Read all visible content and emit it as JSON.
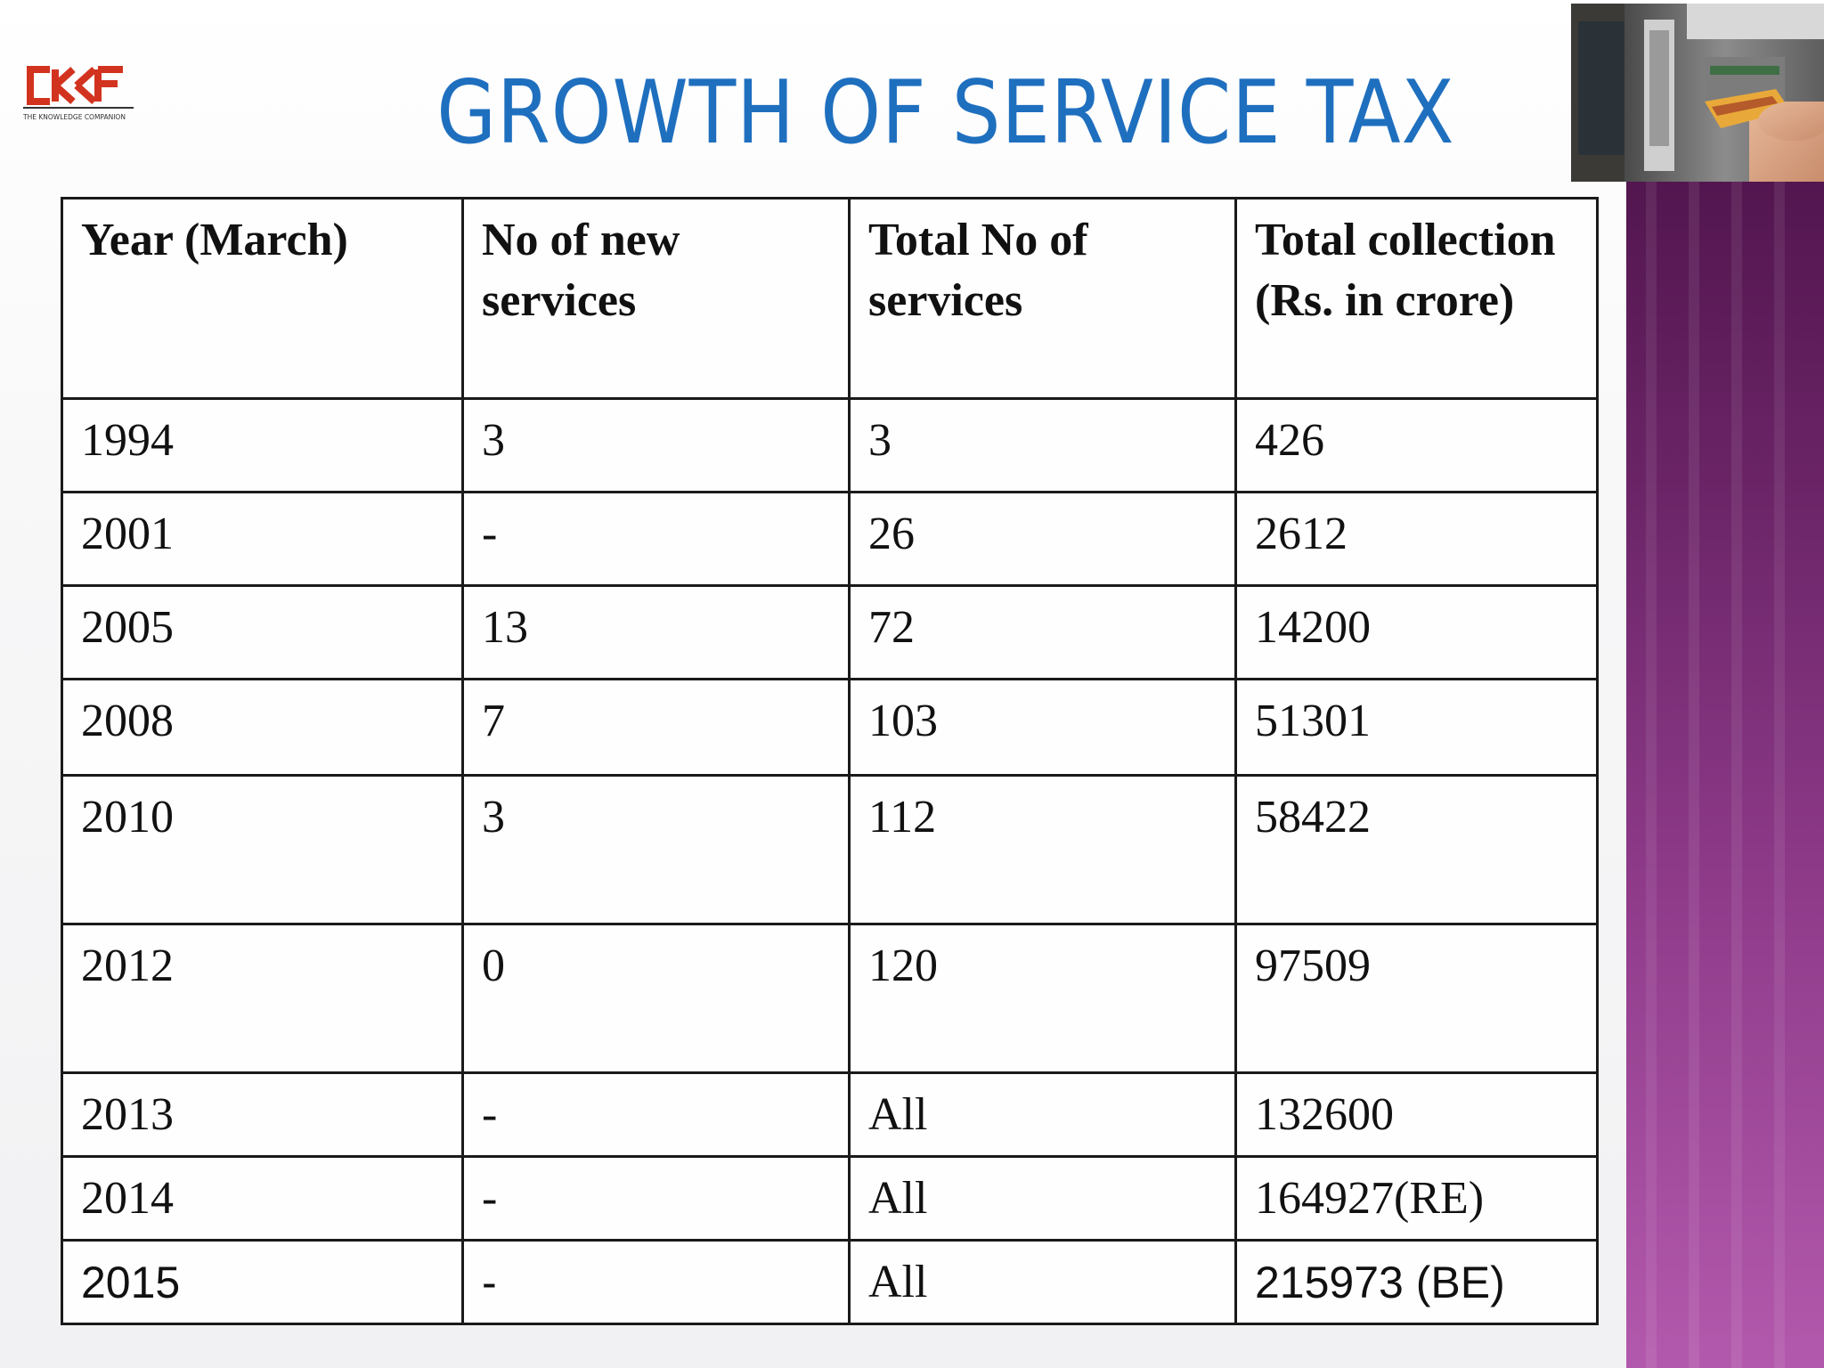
{
  "logo": {
    "text": "CKF",
    "tagline": "THE KNOWLEDGE COMPANION"
  },
  "title": "GROWTH OF SERVICE TAX",
  "photo": {
    "subject": "atm-card-image"
  },
  "colors": {
    "title": "#1f6fbf",
    "logo_red": "#d2331f",
    "panel_top": "#53164f",
    "panel_bottom": "#b359ad"
  },
  "table": {
    "headers": [
      "Year (March)",
      "No of new services",
      "Total No of services",
      "Total collection (Rs. in crore)"
    ],
    "rows": [
      [
        "1994",
        "3",
        "3",
        "426"
      ],
      [
        "2001",
        "-",
        "26",
        "2612"
      ],
      [
        "2005",
        "13",
        "72",
        "14200"
      ],
      [
        "2008",
        "7",
        "103",
        "51301"
      ],
      [
        "2010",
        "3",
        "112",
        "58422"
      ],
      [
        "2012",
        "0",
        "120",
        "97509"
      ],
      [
        "2013",
        "-",
        "All",
        "132600"
      ],
      [
        "2014",
        "-",
        "All",
        "164927(RE)"
      ],
      [
        "2015",
        "-",
        "All",
        "215973 (BE)"
      ]
    ]
  }
}
